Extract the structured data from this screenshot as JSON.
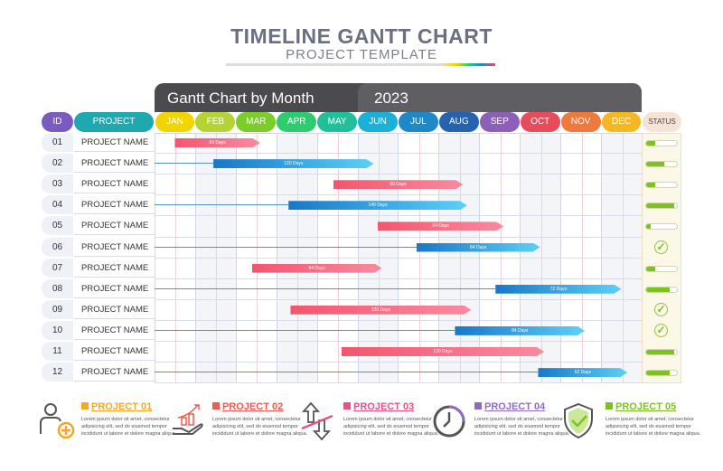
{
  "title": "TIMELINE GANTT CHART",
  "subtitle": "PROJECT TEMPLATE",
  "header": {
    "left": "Gantt Chart by Month",
    "year": "2023"
  },
  "columns": {
    "id": "ID",
    "project": "PROJECT",
    "status": "STATUS"
  },
  "chart_data": {
    "type": "gantt",
    "title": "Gantt Chart by Month",
    "year": "2023",
    "months": [
      "JAN",
      "FEB",
      "MAR",
      "APR",
      "MAY",
      "JUN",
      "JUL",
      "AUG",
      "SEP",
      "OCT",
      "NOV",
      "DEC"
    ],
    "month_colors": [
      "#f2d500",
      "#b4d334",
      "#7ccc2a",
      "#2ecc71",
      "#1fc09a",
      "#1ab0d8",
      "#1e88c8",
      "#2563b0",
      "#8e5fb8",
      "#e84c5a",
      "#f07a3c",
      "#f5b820"
    ],
    "tasks": [
      {
        "id": "01",
        "name": "PROJECT NAME",
        "start": 0.5,
        "end": 2.6,
        "label": "60 Days",
        "color": "pink",
        "status": "progress",
        "progress": 0.3
      },
      {
        "id": "02",
        "name": "PROJECT NAME",
        "start": 1.45,
        "end": 5.4,
        "label": "120 Days",
        "color": "blue",
        "status": "progress",
        "progress": 0.6
      },
      {
        "id": "03",
        "name": "PROJECT NAME",
        "start": 4.4,
        "end": 7.6,
        "label": "90 Days",
        "color": "pink",
        "status": "progress",
        "progress": 0.3
      },
      {
        "id": "04",
        "name": "PROJECT NAME",
        "start": 3.3,
        "end": 7.7,
        "label": "140 Days",
        "color": "blue",
        "status": "progress",
        "progress": 0.9
      },
      {
        "id": "05",
        "name": "PROJECT NAME",
        "start": 5.5,
        "end": 8.6,
        "label": "64 Days",
        "color": "pink",
        "status": "progress",
        "progress": 0.15
      },
      {
        "id": "06",
        "name": "PROJECT NAME",
        "start": 6.45,
        "end": 9.5,
        "label": "84 Days",
        "color": "blue",
        "status": "done"
      },
      {
        "id": "07",
        "name": "PROJECT NAME",
        "start": 2.4,
        "end": 5.6,
        "label": "94 Days",
        "color": "pink",
        "status": "progress",
        "progress": 0.3
      },
      {
        "id": "08",
        "name": "PROJECT NAME",
        "start": 8.4,
        "end": 11.5,
        "label": "72 Days",
        "color": "blue",
        "status": "progress",
        "progress": 0.75
      },
      {
        "id": "09",
        "name": "PROJECT NAME",
        "start": 3.35,
        "end": 7.8,
        "label": "120 Days",
        "color": "pink",
        "status": "done"
      },
      {
        "id": "10",
        "name": "PROJECT NAME",
        "start": 7.4,
        "end": 10.6,
        "label": "84 Days",
        "color": "blue",
        "status": "done"
      },
      {
        "id": "11",
        "name": "PROJECT NAME",
        "start": 4.6,
        "end": 9.6,
        "label": "120 Days",
        "color": "pink",
        "status": "progress",
        "progress": 0.9
      },
      {
        "id": "12",
        "name": "PROJECT NAME",
        "start": 9.45,
        "end": 11.65,
        "label": "62 Days",
        "color": "blue",
        "status": "progress",
        "progress": 0.75
      }
    ]
  },
  "legend": [
    {
      "title": "PROJECT 01",
      "color": "#f5a623",
      "icon": "user-add-icon",
      "text": "Lorem ipsum dolor sit amet, consectetur adipisicing elit, sed do eiusmod tempor incididunt ut labore et dolore magna aliqua."
    },
    {
      "title": "PROJECT 02",
      "color": "#f05a4f",
      "icon": "growth-hand-icon",
      "text": "Lorem ipsum dolor sit amet, consectetur adipisicing elit, sed do eiusmod tempor incididunt ut labore et dolore magna aliqua."
    },
    {
      "title": "PROJECT 03",
      "color": "#e8508a",
      "icon": "up-down-arrows-icon",
      "text": "Lorem ipsum dolor sit amet, consectetur adipisicing elit, sed do eiusmod tempor incididunt ut labore et dolore magna aliqua."
    },
    {
      "title": "PROJECT 04",
      "color": "#8e6bbf",
      "icon": "clock-icon",
      "text": "Lorem ipsum dolor sit amet, consectetur adipisicing elit, sed do eiusmod tempor incididunt ut labore et dolore magna aliqua."
    },
    {
      "title": "PROJECT 05",
      "color": "#7dc21e",
      "icon": "shield-check-icon",
      "text": "Lorem ipsum dolor sit amet, consectetur adipisicing elit, sed do eiusmod tempor incididunt ut labore et dolore magna aliqua."
    }
  ]
}
